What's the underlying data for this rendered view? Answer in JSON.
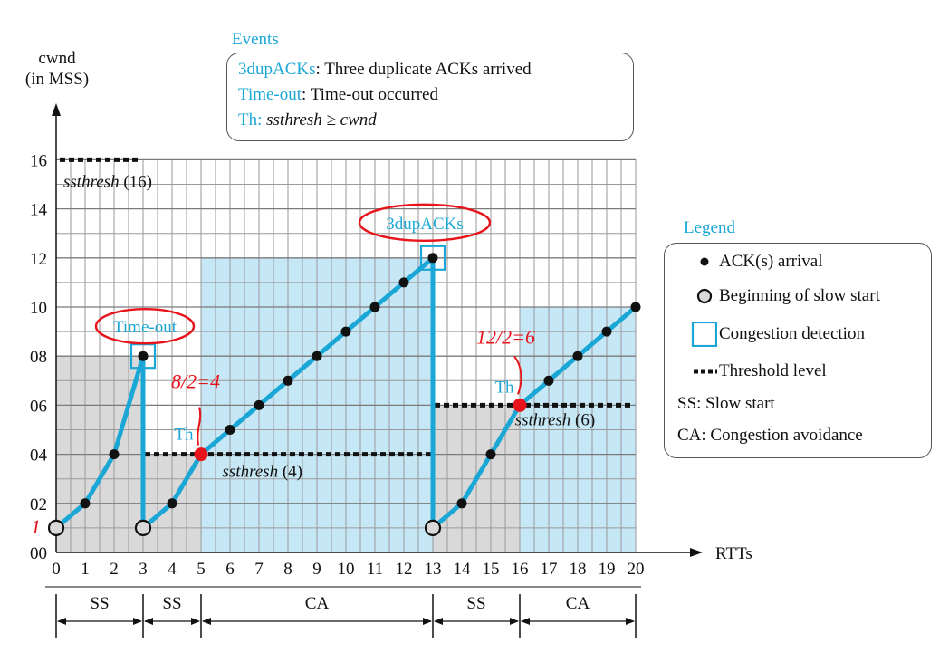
{
  "chart_data": {
    "type": "line",
    "y_axis": {
      "label_line1": "cwnd",
      "label_line2": "(in MSS)",
      "ticks": [
        "00",
        "02",
        "04",
        "06",
        "08",
        "10",
        "12",
        "14",
        "16"
      ],
      "tick_values": [
        0,
        2,
        4,
        6,
        8,
        10,
        12,
        14,
        16
      ],
      "ylim": [
        0,
        16
      ]
    },
    "x_axis": {
      "label": "RTTs",
      "ticks": [
        "0",
        "1",
        "2",
        "3",
        "4",
        "5",
        "6",
        "7",
        "8",
        "9",
        "10",
        "11",
        "12",
        "13",
        "14",
        "15",
        "16",
        "17",
        "18",
        "19",
        "20"
      ],
      "xlim": [
        0,
        20
      ]
    },
    "grid": true,
    "series": [
      {
        "points": [
          [
            0,
            1
          ],
          [
            1,
            2
          ],
          [
            2,
            4
          ],
          [
            3,
            8
          ],
          [
            3,
            1
          ],
          [
            4,
            2
          ],
          [
            5,
            4
          ],
          [
            6,
            5
          ],
          [
            7,
            6
          ],
          [
            8,
            7
          ],
          [
            9,
            8
          ],
          [
            10,
            9
          ],
          [
            11,
            10
          ],
          [
            12,
            11
          ],
          [
            13,
            12
          ],
          [
            13,
            1
          ],
          [
            14,
            2
          ],
          [
            15,
            4
          ],
          [
            16,
            6
          ],
          [
            17,
            7
          ],
          [
            18,
            8
          ],
          [
            19,
            9
          ],
          [
            20,
            10
          ]
        ]
      }
    ],
    "markers": {
      "slow_start_begin": [
        [
          0,
          1
        ],
        [
          3,
          1
        ],
        [
          13,
          1
        ]
      ],
      "ack_arrivals": [
        [
          1,
          2
        ],
        [
          2,
          4
        ],
        [
          3,
          8
        ],
        [
          4,
          2
        ],
        [
          5,
          4
        ],
        [
          6,
          5
        ],
        [
          7,
          6
        ],
        [
          8,
          7
        ],
        [
          9,
          8
        ],
        [
          10,
          9
        ],
        [
          11,
          10
        ],
        [
          12,
          11
        ],
        [
          13,
          12
        ],
        [
          14,
          2
        ],
        [
          15,
          4
        ],
        [
          16,
          6
        ],
        [
          17,
          7
        ],
        [
          18,
          8
        ],
        [
          19,
          9
        ],
        [
          20,
          10
        ]
      ],
      "congestion_detection": [
        [
          3,
          8
        ],
        [
          13,
          12
        ]
      ],
      "threshold_points": [
        [
          5,
          4
        ],
        [
          16,
          6
        ]
      ]
    },
    "thresholds": [
      {
        "label": "ssthresh (16)",
        "value": 16,
        "x_range": [
          0,
          3
        ]
      },
      {
        "label": "ssthresh (4)",
        "value": 4,
        "x_range": [
          3,
          13
        ]
      },
      {
        "label": "ssthresh (6)",
        "value": 6,
        "x_range": [
          13,
          20
        ]
      }
    ],
    "regions": [
      {
        "x_range": [
          0,
          3
        ],
        "y_top": 8,
        "fill": "gray"
      },
      {
        "x_range": [
          3,
          5
        ],
        "y_top": 4,
        "fill": "gray"
      },
      {
        "x_range": [
          5,
          13
        ],
        "y_top": 12,
        "fill": "blue"
      },
      {
        "x_range": [
          13,
          16
        ],
        "y_top": 6,
        "fill": "gray"
      },
      {
        "x_range": [
          16,
          20
        ],
        "y_top": 10,
        "fill": "blue"
      }
    ],
    "phases": [
      {
        "label": "SS",
        "x_range": [
          0,
          3
        ]
      },
      {
        "label": "SS",
        "x_range": [
          3,
          5
        ]
      },
      {
        "label": "CA",
        "x_range": [
          5,
          13
        ]
      },
      {
        "label": "SS",
        "x_range": [
          13,
          16
        ]
      },
      {
        "label": "CA",
        "x_range": [
          16,
          20
        ]
      }
    ],
    "event_labels": [
      {
        "text": "Time-out",
        "at": [
          3,
          8
        ]
      },
      {
        "text": "3dupACKs",
        "at": [
          13,
          12
        ]
      },
      {
        "text": "Th",
        "at": [
          5,
          4
        ]
      },
      {
        "text": "Th",
        "at": [
          16,
          6
        ]
      }
    ],
    "handwritten_annotations": [
      {
        "text": "8/2=4",
        "at": [
          5,
          4
        ]
      },
      {
        "text": "12/2=6",
        "at": [
          16,
          6
        ]
      },
      {
        "text": "1",
        "at": [
          0,
          1
        ]
      }
    ],
    "events_box": {
      "title": "Events",
      "lines": [
        {
          "key": "3dupACKs",
          "desc": ": Three duplicate ACKs arrived"
        },
        {
          "key": "Time-out",
          "desc": ": Time-out occurred"
        },
        {
          "key": "Th:",
          "desc": "ssthresh ≥  cwnd"
        }
      ]
    },
    "legend": {
      "title": "Legend",
      "items": [
        {
          "symbol": "ack-dot",
          "label": "ACK(s) arrival"
        },
        {
          "symbol": "slow-start-circle",
          "label": "Beginning of slow start"
        },
        {
          "symbol": "congestion-square",
          "label": "Congestion detection"
        },
        {
          "symbol": "threshold-dash",
          "label": "Threshold level"
        },
        {
          "symbol": "none",
          "label": "SS: Slow start"
        },
        {
          "symbol": "none",
          "label": "CA: Congestion avoidance"
        }
      ]
    },
    "colors": {
      "line": "#1ba7d6",
      "fill_blue": "#c6e7f5",
      "fill_gray": "#d9d9d9",
      "accent": "#e8141b",
      "label_blue": "#1ba7d6"
    }
  }
}
